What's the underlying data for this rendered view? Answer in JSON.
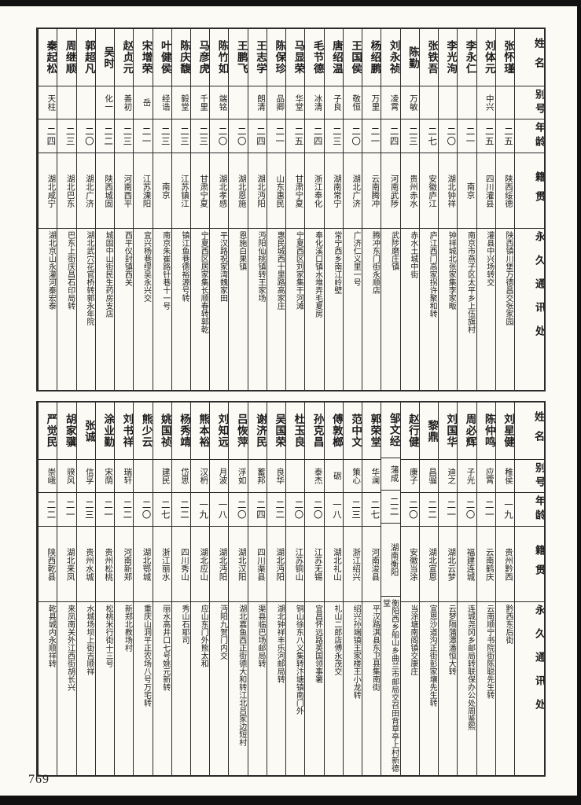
{
  "page": {
    "number": "769"
  },
  "headers": {
    "name": "姓名",
    "alias": "别号",
    "age": "年龄",
    "native": "籍贯",
    "address": "永久通讯处"
  },
  "top_table": {
    "people": [
      {
        "name": "张怀瑾",
        "alias": "",
        "age": "二五",
        "native": "陕西绥德",
        "address": "陕西镇川堡万德昌交张家园"
      },
      {
        "name": "刘体元",
        "alias": "中兴",
        "age": "二五",
        "native": "四川灌县",
        "address": "灌县中兴场转交"
      },
      {
        "name": "李永仁",
        "alias": "",
        "age": "二一",
        "native": "南京",
        "address": "南京市燕子区太平乡上伍旗村"
      },
      {
        "name": "李光洵",
        "alias": "",
        "age": "二〇",
        "native": "湖北钟祥",
        "address": "钟祥城北张家集李家畈"
      },
      {
        "name": "张铁吾",
        "alias": "",
        "age": "二七",
        "native": "安徽庐江",
        "address": "庐江西门高家拐许聚和转"
      },
      {
        "name": "陈勤",
        "alias": "万敏",
        "age": "二三",
        "native": "贵州赤水",
        "address": "赤水土城中街"
      },
      {
        "name": "刘永祯",
        "alias": "凌霄",
        "age": "二四",
        "native": "河南武陟",
        "address": "武陟磨庄镇"
      },
      {
        "name": "杨绍鹏",
        "alias": "万里",
        "age": "二一",
        "native": "云南腾冲",
        "address": "腾冲东门街永顺店"
      },
      {
        "name": "王国侯",
        "alias": "敬恒",
        "age": "二〇",
        "native": "湖北广济",
        "address": "广济仁义里一号"
      },
      {
        "name": "唐绍温",
        "alias": "子良",
        "age": "二三",
        "native": "湖南常宁",
        "address": "常宁西乡南江岭壁"
      },
      {
        "name": "毛节德",
        "alias": "冰清",
        "age": "二四",
        "native": "浙江奉化",
        "address": "奉化溪口镇水堆弄毛夏房"
      },
      {
        "name": "马显荣",
        "alias": "华堂",
        "age": "二五",
        "native": "甘肃宁夏",
        "address": "宁夏西区刘家集干河滩"
      },
      {
        "name": "陈保珍",
        "alias": "品卿",
        "age": "二一",
        "native": "山东惠民",
        "address": "惠民城西十里路高家庄"
      },
      {
        "name": "王志学",
        "alias": "朗清",
        "age": "二四",
        "native": "湖北沔阳",
        "address": "沔阳仙桃镇转王家场"
      },
      {
        "name": "王鹏飞",
        "alias": "",
        "age": "二〇",
        "native": "湖北恩施",
        "address": "恩施白果镇"
      },
      {
        "name": "陈竹如",
        "alias": "端铭",
        "age": "二〇",
        "native": "湖北孝感",
        "address": "平汉路祝家湾魏家田"
      },
      {
        "name": "马彦虎",
        "alias": "千里",
        "age": "二三",
        "native": "甘肃宁夏",
        "address": "宁夏西区居家集长顺春转郭乾"
      },
      {
        "name": "陈庆馥",
        "alias": "毅堂",
        "age": "二三",
        "native": "江苏镇江",
        "address": "镇江鱼巷德裕源号转"
      },
      {
        "name": "叶健侯",
        "alias": "经诰",
        "age": "二三",
        "native": "南京",
        "address": "南京朱崔路针巷十一号"
      },
      {
        "name": "宋增荣",
        "alias": "岳",
        "age": "二一",
        "native": "江苏溧阳",
        "address": "宜兴杨巷缪吴永兴交"
      },
      {
        "name": "赵贞元",
        "alias": "善初",
        "age": "二三",
        "native": "河南西平",
        "address": "西平仪封镇西关"
      },
      {
        "name": "吴时",
        "alias": "化一",
        "age": "二二",
        "native": "陕西城固",
        "address": "城固中山街民生药房支店"
      },
      {
        "name": "郭超凡",
        "alias": "",
        "age": "二〇",
        "native": "湖北广济",
        "address": "湖北武穴花官桥转郭永年院"
      },
      {
        "name": "周继顺",
        "alias": "",
        "age": "二三",
        "native": "湖北巴东",
        "address": "巴东上街庆昌石印局转"
      },
      {
        "name": "秦起松",
        "alias": "天柱",
        "age": "二四",
        "native": "湖北咸宁",
        "address": "湖北京山永灌河秦宏泰"
      }
    ]
  },
  "bottom_table": {
    "people": [
      {
        "name": "刘星健",
        "alias": "稚侯",
        "age": "一九",
        "native": "贵州黔西",
        "address": "黔西东后街"
      },
      {
        "name": "陈仲鸣",
        "alias": "应霄",
        "age": "二一",
        "native": "云南鹤庆",
        "address": "云南顺宁书院街陈聪先生转"
      },
      {
        "name": "周必辉",
        "alias": "子光",
        "age": "二〇",
        "native": "福建连城",
        "address": "连城尧冈乡邮局转联保办公处周鉴熙"
      },
      {
        "name": "刘国华",
        "alias": "迪之",
        "age": "二一",
        "native": "湖北云梦",
        "address": "云梦隔蒲潭潘恒大转"
      },
      {
        "name": "黎鼎",
        "alias": "昌骝",
        "age": "二二",
        "native": "湖北宣恩",
        "address": "宣恩沙道沟正街彭家壤先生转"
      },
      {
        "name": "赵行健",
        "alias": "康子",
        "age": "二〇",
        "native": "安徽当涂",
        "address": "当涂塘南阁镇交康庄"
      },
      {
        "name": "邹文经",
        "alias": "蒲成",
        "age": "二二",
        "native": "湖南衡阳",
        "address": "衡阳西乡船山乡曲兰市邮局交召田背草亭上村新德堂"
      },
      {
        "name": "郭荣堂",
        "alias": "华澜",
        "age": "二七",
        "native": "河南浚县",
        "address": "平汉路淇县东卫县集南街"
      },
      {
        "name": "范中文",
        "alias": "策心",
        "age": "二三",
        "native": "浙江绍兴",
        "address": "绍兴孙端镇王家楼王小龙转"
      },
      {
        "name": "傅敦榔",
        "alias": "砺",
        "age": "一八",
        "native": "湖北礼山",
        "address": "礼山二郎店傅永茂交"
      },
      {
        "name": "孙克昌",
        "alias": "泰杰",
        "age": "二〇",
        "native": "江苏无锡",
        "address": "宜昌怀远路英国领事署"
      },
      {
        "name": "杜玉良",
        "alias": "",
        "age": "二〇",
        "native": "江苏铜山",
        "address": "铜山徐东八义集转汴塘镇南门外"
      },
      {
        "name": "吴国荣",
        "alias": "良华",
        "age": "二二",
        "native": "湖北沔阳",
        "address": "湖北钟祥丰乐河邮局转"
      },
      {
        "name": "谢济民",
        "alias": "蓄邦",
        "age": "二四",
        "native": "四川渠县",
        "address": "渠县临巴场邮局转"
      },
      {
        "name": "吕恢萍",
        "alias": "浮如",
        "age": "二〇",
        "native": "湖北汉阳",
        "address": "湖北嘉鱼西正街德大和转江北吕家边短村"
      },
      {
        "name": "刘知远",
        "alias": "月波",
        "age": "一八",
        "native": "湖北沔阳",
        "address": "沔阳九贺门内交"
      },
      {
        "name": "熊本裕",
        "alias": "汉枬",
        "age": "一九",
        "native": "湖北应山",
        "address": "应山东门外熊太和"
      },
      {
        "name": "杨秀靖",
        "alias": "岱思",
        "age": "二二",
        "native": "四川秀山",
        "address": "秀山石耶司"
      },
      {
        "name": "姚国祯",
        "alias": "建民",
        "age": "二七",
        "native": "浙江丽水",
        "address": "丽水高井口七号姚元新转"
      },
      {
        "name": "熊少云",
        "alias": "",
        "age": "二〇",
        "native": "湖北鄂城",
        "address": "重庆山洞平正农场八号万宅转"
      },
      {
        "name": "刘书祥",
        "alias": "瑞轩",
        "age": "二二",
        "native": "河南新郑",
        "address": "新郑北教场村"
      },
      {
        "name": "涂业勤",
        "alias": "宋荫",
        "age": "二一",
        "native": "贵州松桃",
        "address": "松桃米行街十三号"
      },
      {
        "name": "张诚",
        "alias": "信孚",
        "age": "二三",
        "native": "贵州水城",
        "address": "水城场坝上街吉顺祥"
      },
      {
        "name": "胡家骥",
        "alias": "骙风",
        "age": "二一",
        "native": "湖北来凤",
        "address": "来凤南关外江西街胡长兴"
      },
      {
        "name": "严觉民",
        "alias": "崇峨",
        "age": "二二",
        "native": "陕西乾县",
        "address": "乾县城内永顺祥转"
      }
    ]
  }
}
